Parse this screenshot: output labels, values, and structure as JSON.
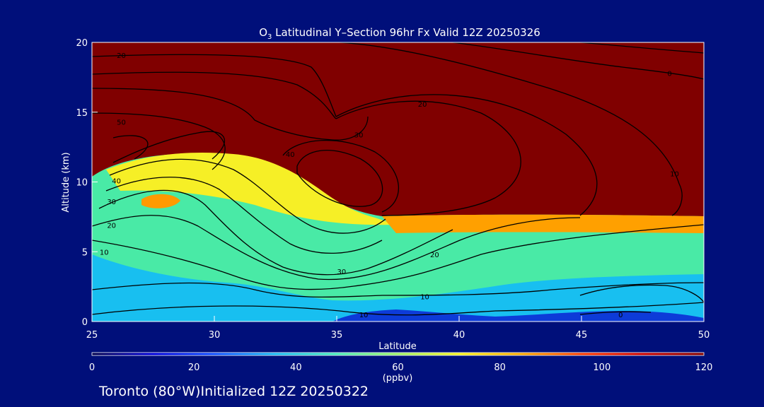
{
  "chart_data": {
    "type": "contour",
    "title_prefix": "O",
    "title_subscript": "3",
    "title_rest": " Latitudinal Y–Section 96hr  Fx Valid 12Z 20250326",
    "xlabel": "Latitude",
    "ylabel": "Altitude (km)",
    "xlim": [
      25,
      50
    ],
    "ylim": [
      0,
      20
    ],
    "x_ticks": [
      25,
      30,
      35,
      40,
      45,
      50
    ],
    "y_ticks": [
      0,
      5,
      10,
      15,
      20
    ],
    "colorbar": {
      "label": "(ppbv)",
      "min": 0,
      "max": 120,
      "ticks": [
        0,
        20,
        40,
        60,
        80,
        100,
        120
      ],
      "colors": [
        "#00004d",
        "#0000d8",
        "#0d4cff",
        "#16b6f0",
        "#44e8b8",
        "#9af066",
        "#f4f01e",
        "#ffa800",
        "#ff3a00",
        "#c80000",
        "#800000"
      ]
    },
    "contour_labels": [
      {
        "text": "20",
        "x": 26.2,
        "y": 19.1
      },
      {
        "text": "0",
        "x": 48.6,
        "y": 17.8
      },
      {
        "text": "20",
        "x": 38.5,
        "y": 15.6
      },
      {
        "text": "50",
        "x": 26.2,
        "y": 14.3
      },
      {
        "text": "30",
        "x": 35.9,
        "y": 13.4
      },
      {
        "text": "40",
        "x": 33.1,
        "y": 12.0
      },
      {
        "text": "10",
        "x": 48.8,
        "y": 10.6
      },
      {
        "text": "40",
        "x": 26.0,
        "y": 10.1
      },
      {
        "text": "30",
        "x": 25.8,
        "y": 8.6
      },
      {
        "text": "20",
        "x": 25.8,
        "y": 6.9
      },
      {
        "text": "10",
        "x": 25.5,
        "y": 5.0
      },
      {
        "text": "20",
        "x": 39.0,
        "y": 4.8
      },
      {
        "text": "30",
        "x": 35.2,
        "y": 3.6
      },
      {
        "text": "10",
        "x": 38.6,
        "y": 1.8
      },
      {
        "text": "10",
        "x": 36.1,
        "y": 0.5
      },
      {
        "text": "0",
        "x": 46.6,
        "y": 0.5
      }
    ]
  },
  "footer_text": "Toronto (80°W)Initialized 12Z 20250322"
}
